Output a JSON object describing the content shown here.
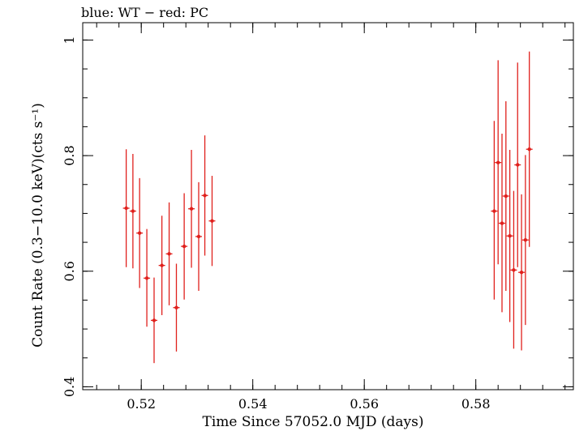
{
  "chart_data": {
    "type": "scatter",
    "title": "blue: WT − red: PC",
    "xlabel": "Time Since 57052.0 MJD (days)",
    "ylabel": "Count Rate (0.3−10.0 keV)(cts s⁻¹)",
    "xlim": [
      0.5095,
      0.5975
    ],
    "ylim": [
      0.395,
      1.03
    ],
    "xticks": [
      0.52,
      0.54,
      0.56,
      0.58
    ],
    "xtick_labels": [
      "0.52",
      "0.54",
      "0.56",
      "0.58"
    ],
    "yticks": [
      0.4,
      0.6,
      0.8,
      1.0
    ],
    "ytick_labels": [
      "0.4",
      "0.6",
      "0.8",
      "1"
    ],
    "grid": false,
    "series": [
      {
        "color": "#e0201c",
        "points": [
          {
            "x": 0.5173,
            "y": 0.709,
            "yerr_low": 0.607,
            "yerr_high": 0.811,
            "xerr": 0.0007
          },
          {
            "x": 0.5185,
            "y": 0.704,
            "yerr_low": 0.605,
            "yerr_high": 0.803
          },
          {
            "x": 0.5197,
            "y": 0.666,
            "yerr_low": 0.571,
            "yerr_high": 0.761
          },
          {
            "x": 0.521,
            "y": 0.588,
            "yerr_low": 0.504,
            "yerr_high": 0.673
          },
          {
            "x": 0.5223,
            "y": 0.515,
            "yerr_low": 0.441,
            "yerr_high": 0.589
          },
          {
            "x": 0.5237,
            "y": 0.61,
            "yerr_low": 0.524,
            "yerr_high": 0.696
          },
          {
            "x": 0.525,
            "y": 0.63,
            "yerr_low": 0.541,
            "yerr_high": 0.719
          },
          {
            "x": 0.5263,
            "y": 0.537,
            "yerr_low": 0.461,
            "yerr_high": 0.613
          },
          {
            "x": 0.5277,
            "y": 0.643,
            "yerr_low": 0.551,
            "yerr_high": 0.735
          },
          {
            "x": 0.529,
            "y": 0.708,
            "yerr_low": 0.606,
            "yerr_high": 0.81
          },
          {
            "x": 0.5303,
            "y": 0.66,
            "yerr_low": 0.566,
            "yerr_high": 0.754
          },
          {
            "x": 0.5314,
            "y": 0.731,
            "yerr_low": 0.627,
            "yerr_high": 0.835
          },
          {
            "x": 0.5327,
            "y": 0.687,
            "yerr_low": 0.609,
            "yerr_high": 0.765
          },
          {
            "x": 0.5833,
            "y": 0.704,
            "yerr_low": 0.551,
            "yerr_high": 0.86
          },
          {
            "x": 0.584,
            "y": 0.788,
            "yerr_low": 0.612,
            "yerr_high": 0.965
          },
          {
            "x": 0.5847,
            "y": 0.683,
            "yerr_low": 0.529,
            "yerr_high": 0.838
          },
          {
            "x": 0.5854,
            "y": 0.73,
            "yerr_low": 0.566,
            "yerr_high": 0.894
          },
          {
            "x": 0.5861,
            "y": 0.661,
            "yerr_low": 0.512,
            "yerr_high": 0.81
          },
          {
            "x": 0.5868,
            "y": 0.602,
            "yerr_low": 0.466,
            "yerr_high": 0.739
          },
          {
            "x": 0.5875,
            "y": 0.784,
            "yerr_low": 0.607,
            "yerr_high": 0.961
          },
          {
            "x": 0.5882,
            "y": 0.598,
            "yerr_low": 0.463,
            "yerr_high": 0.733
          },
          {
            "x": 0.5889,
            "y": 0.654,
            "yerr_low": 0.507,
            "yerr_high": 0.801
          },
          {
            "x": 0.5896,
            "y": 0.811,
            "yerr_low": 0.642,
            "yerr_high": 0.98
          }
        ]
      }
    ]
  }
}
